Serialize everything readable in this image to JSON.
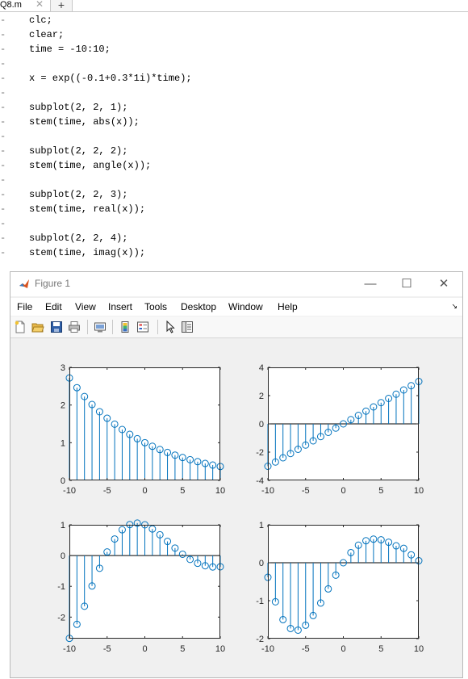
{
  "editor": {
    "tab_name": "Q8.m",
    "tab_close": "✕",
    "tab_add": "+",
    "lines": [
      "clc;",
      "clear;",
      "time = -10:10;",
      "",
      "x = exp((-0.1+0.3*1i)*time);",
      "",
      "subplot(2, 2, 1);",
      "stem(time, abs(x));",
      "",
      "subplot(2, 2, 2);",
      "stem(time, angle(x));",
      "",
      "subplot(2, 2, 3);",
      "stem(time, real(x));",
      "",
      "subplot(2, 2, 4);",
      "stem(time, imag(x));"
    ]
  },
  "figure": {
    "title": "Figure 1",
    "buttons": {
      "minimize": "—",
      "maximize": "☐",
      "close": "✕"
    },
    "menus": [
      "File",
      "Edit",
      "View",
      "Insert",
      "Tools",
      "Desktop",
      "Window",
      "Help"
    ],
    "dock_arrow": "↘",
    "toolbar_icons": [
      "new-figure-icon",
      "open-file-icon",
      "save-icon",
      "print-icon",
      "link-plot-icon",
      "insert-colorbar-icon",
      "insert-legend-icon",
      "pointer-icon",
      "property-editor-icon"
    ],
    "stem_color": "#0072BD"
  },
  "chart_data": [
    {
      "type": "stem",
      "subplot": "abs(x)",
      "x": [
        -10,
        -9,
        -8,
        -7,
        -6,
        -5,
        -4,
        -3,
        -2,
        -1,
        0,
        1,
        2,
        3,
        4,
        5,
        6,
        7,
        8,
        9,
        10
      ],
      "y": [
        2.718,
        2.46,
        2.226,
        2.014,
        1.822,
        1.649,
        1.492,
        1.35,
        1.221,
        1.105,
        1.0,
        0.905,
        0.819,
        0.741,
        0.67,
        0.607,
        0.549,
        0.497,
        0.449,
        0.407,
        0.368
      ],
      "xlim": [
        -10,
        10
      ],
      "ylim": [
        0,
        3
      ],
      "xticks": [
        -10,
        -5,
        0,
        5,
        10
      ],
      "yticks": [
        0,
        1,
        2,
        3
      ],
      "xtick_labels": [
        "-10",
        "-5",
        "0",
        "5",
        "10"
      ],
      "ytick_labels": [
        "0",
        "1",
        "2",
        "3"
      ]
    },
    {
      "type": "stem",
      "subplot": "angle(x)",
      "x": [
        -10,
        -9,
        -8,
        -7,
        -6,
        -5,
        -4,
        -3,
        -2,
        -1,
        0,
        1,
        2,
        3,
        4,
        5,
        6,
        7,
        8,
        9,
        10
      ],
      "y": [
        -3.0,
        -2.7,
        -2.4,
        -2.1,
        -1.8,
        -1.5,
        -1.2,
        -0.9,
        -0.6,
        -0.3,
        0.0,
        0.3,
        0.6,
        0.9,
        1.2,
        1.5,
        1.8,
        2.1,
        2.4,
        2.7,
        3.0
      ],
      "xlim": [
        -10,
        10
      ],
      "ylim": [
        -4,
        4
      ],
      "xticks": [
        -10,
        -5,
        0,
        5,
        10
      ],
      "yticks": [
        -4,
        -2,
        0,
        2,
        4
      ],
      "xtick_labels": [
        "-10",
        "-5",
        "0",
        "5",
        "10"
      ],
      "ytick_labels": [
        "-4",
        "-2",
        "0",
        "2",
        "4"
      ]
    },
    {
      "type": "stem",
      "subplot": "real(x)",
      "x": [
        -10,
        -9,
        -8,
        -7,
        -6,
        -5,
        -4,
        -3,
        -2,
        -1,
        0,
        1,
        2,
        3,
        4,
        5,
        6,
        7,
        8,
        9,
        10
      ],
      "y": [
        -2.691,
        -2.235,
        -1.647,
        -0.989,
        -0.413,
        0.117,
        0.538,
        0.839,
        1.008,
        1.055,
        1.0,
        0.864,
        0.676,
        0.461,
        0.243,
        0.043,
        -0.125,
        -0.25,
        -0.331,
        -0.37,
        -0.364
      ],
      "xlim": [
        -10,
        10
      ],
      "ylim": [
        -2.7,
        1
      ],
      "xticks": [
        -10,
        -5,
        0,
        5,
        10
      ],
      "yticks": [
        -2,
        -1,
        0,
        1
      ],
      "xtick_labels": [
        "-10",
        "-5",
        "0",
        "5",
        "10"
      ],
      "ytick_labels": [
        "-2",
        "-1",
        "0",
        "1"
      ]
    },
    {
      "type": "stem",
      "subplot": "imag(x)",
      "x": [
        -10,
        -9,
        -8,
        -7,
        -6,
        -5,
        -4,
        -3,
        -2,
        -1,
        0,
        1,
        2,
        3,
        4,
        5,
        6,
        7,
        8,
        9,
        10
      ],
      "y": [
        -0.384,
        -1.029,
        -1.499,
        -1.733,
        -1.776,
        -1.645,
        -1.392,
        -1.062,
        -0.689,
        -0.327,
        0.0,
        0.267,
        0.462,
        0.579,
        0.622,
        0.605,
        0.541,
        0.446,
        0.379,
        0.208,
        0.052
      ],
      "xlim": [
        -10,
        10
      ],
      "ylim": [
        -2,
        1
      ],
      "xticks": [
        -10,
        -5,
        0,
        5,
        10
      ],
      "yticks": [
        -2,
        -1,
        0,
        1
      ],
      "xtick_labels": [
        "-10",
        "-5",
        "0",
        "5",
        "10"
      ],
      "ytick_labels": [
        "-2",
        "-1",
        "0",
        "1"
      ]
    }
  ]
}
